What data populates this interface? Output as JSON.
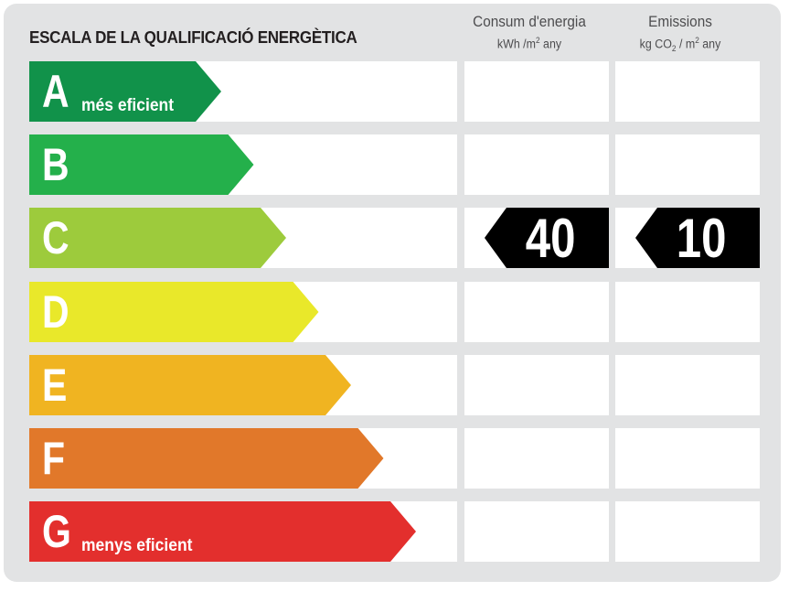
{
  "title": "ESCALA DE LA QUALIFICACIÓ ENERGÈTICA",
  "columns": {
    "consumption": {
      "label": "Consum d'energia",
      "unit_pre": "kWh /m",
      "unit_sup": "2",
      "unit_post": " any"
    },
    "emissions": {
      "label": "Emissions",
      "unit_pre": "kg CO",
      "unit_sub": "2",
      "unit_mid": " / m",
      "unit_sup": "2",
      "unit_post": " any"
    }
  },
  "ratings": [
    {
      "letter": "A",
      "sublabel": "més eficient",
      "color": "#11924a"
    },
    {
      "letter": "B",
      "sublabel": "",
      "color": "#24b04b"
    },
    {
      "letter": "C",
      "sublabel": "",
      "color": "#9dcb3c"
    },
    {
      "letter": "D",
      "sublabel": "",
      "color": "#e9e82a"
    },
    {
      "letter": "E",
      "sublabel": "",
      "color": "#f0b421"
    },
    {
      "letter": "F",
      "sublabel": "",
      "color": "#e1782a"
    },
    {
      "letter": "G",
      "sublabel": "menys eficient",
      "color": "#e32f2d"
    }
  ],
  "result": {
    "rating": "C",
    "consumption_value": "40",
    "emissions_value": "10",
    "badge_color": "#000000"
  }
}
